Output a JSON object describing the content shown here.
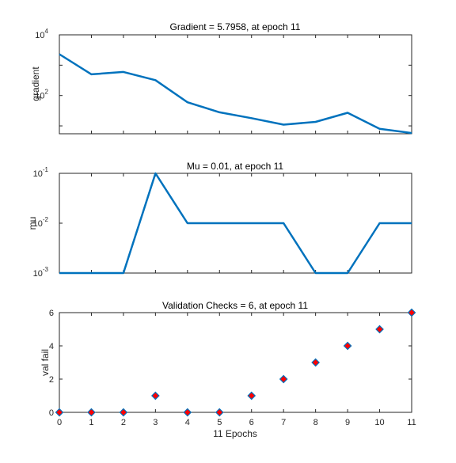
{
  "chart_data": [
    {
      "type": "line",
      "title": "Gradient = 5.7958, at epoch 11",
      "ylabel": "gradient",
      "yscale": "log",
      "ylim": [
        5.5,
        10000
      ],
      "yticks": [
        {
          "value": 100,
          "base": "10",
          "exp": "2"
        },
        {
          "value": 10000,
          "base": "10",
          "exp": "4"
        }
      ],
      "x": [
        0,
        1,
        2,
        3,
        4,
        5,
        6,
        7,
        8,
        9,
        10,
        11
      ],
      "series": [
        {
          "values": [
            2300,
            500,
            600,
            320,
            60,
            28,
            18,
            11,
            13.5,
            27,
            8,
            5.8
          ],
          "color": "#0072BD"
        }
      ]
    },
    {
      "type": "line",
      "title": "Mu = 0.01, at epoch 11",
      "ylabel": "mu",
      "yscale": "log",
      "ylim": [
        0.001,
        0.1
      ],
      "yticks": [
        {
          "value": 0.001,
          "base": "10",
          "exp": "-3"
        },
        {
          "value": 0.01,
          "base": "10",
          "exp": "-2"
        },
        {
          "value": 0.1,
          "base": "10",
          "exp": "-1"
        }
      ],
      "x": [
        0,
        1,
        2,
        3,
        4,
        5,
        6,
        7,
        8,
        9,
        10,
        11
      ],
      "series": [
        {
          "values": [
            0.001,
            0.001,
            0.001,
            0.1,
            0.01,
            0.01,
            0.01,
            0.01,
            0.001,
            0.001,
            0.01,
            0.01
          ],
          "color": "#0072BD"
        }
      ]
    },
    {
      "type": "scatter",
      "title": "Validation Checks = 6, at epoch 11",
      "ylabel": "val fail",
      "xlabel": "11 Epochs",
      "ylim": [
        0,
        6
      ],
      "yticks": [
        "0",
        "2",
        "4",
        "6"
      ],
      "xticks": [
        "0",
        "1",
        "2",
        "3",
        "4",
        "5",
        "6",
        "7",
        "8",
        "9",
        "10",
        "11"
      ],
      "x": [
        0,
        1,
        2,
        3,
        4,
        5,
        6,
        7,
        8,
        9,
        10,
        11
      ],
      "series": [
        {
          "values": [
            0,
            0,
            0,
            1,
            0,
            0,
            1,
            2,
            3,
            4,
            5,
            6
          ],
          "marker": "diamond",
          "color": "#FF0000",
          "edge_color": "#0072BD"
        }
      ]
    }
  ]
}
